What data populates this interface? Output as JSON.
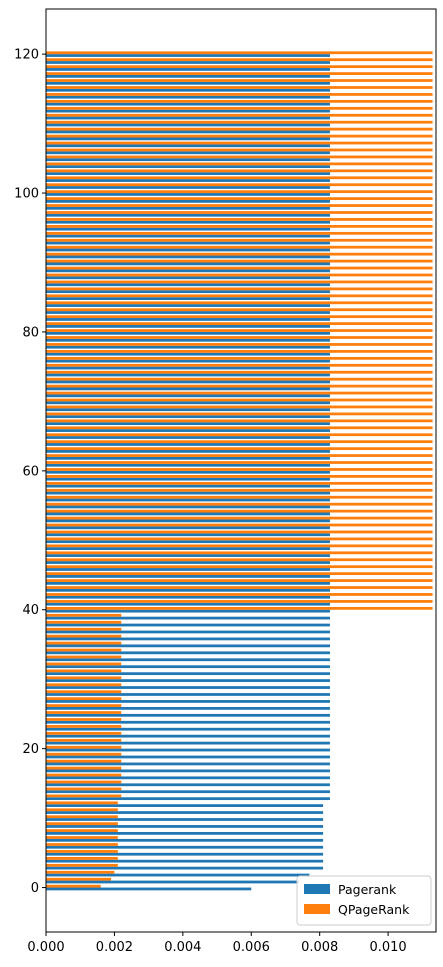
{
  "chart_data": {
    "type": "bar",
    "orientation": "horizontal",
    "grouped": true,
    "title": "",
    "xlabel": "",
    "ylabel": "",
    "xlim": [
      0,
      0.0114
    ],
    "ylim": [
      -6.4,
      126.5
    ],
    "x_ticks": [
      0.0,
      0.002,
      0.004,
      0.006,
      0.008,
      0.01
    ],
    "x_tick_labels": [
      "0.000",
      "0.002",
      "0.004",
      "0.006",
      "0.008",
      "0.010"
    ],
    "y_ticks": [
      0,
      20,
      40,
      60,
      80,
      100,
      120
    ],
    "y_tick_labels": [
      "0",
      "20",
      "40",
      "60",
      "80",
      "100",
      "120"
    ],
    "grid": false,
    "legend_position": "lower-right",
    "categories_range": [
      0,
      120
    ],
    "series": [
      {
        "name": "Pagerank",
        "color": "#1f77b4",
        "values": [
          0.006,
          0.0074,
          0.0077,
          0.0081,
          0.0081,
          0.0081,
          0.0081,
          0.0081,
          0.0081,
          0.0081,
          0.0081,
          0.0081,
          0.0081,
          0.0083,
          0.0083,
          0.0083,
          0.0083,
          0.0083,
          0.0083,
          0.0083,
          0.0083,
          0.0083,
          0.0083,
          0.0083,
          0.0083,
          0.0083,
          0.0083,
          0.0083,
          0.0083,
          0.0083,
          0.0083,
          0.0083,
          0.0083,
          0.0083,
          0.0083,
          0.0083,
          0.0083,
          0.0083,
          0.0083,
          0.0083,
          0.0083,
          0.0083,
          0.0083,
          0.0083,
          0.0083,
          0.0083,
          0.0083,
          0.0083,
          0.0083,
          0.0083,
          0.0083,
          0.0083,
          0.0083,
          0.0083,
          0.0083,
          0.0083,
          0.0083,
          0.0083,
          0.0083,
          0.0083,
          0.0083,
          0.0083,
          0.0083,
          0.0083,
          0.0083,
          0.0083,
          0.0083,
          0.0083,
          0.0083,
          0.0083,
          0.0083,
          0.0083,
          0.0083,
          0.0083,
          0.0083,
          0.0083,
          0.0083,
          0.0083,
          0.0083,
          0.0083,
          0.0083,
          0.0083,
          0.0083,
          0.0083,
          0.0083,
          0.0083,
          0.0083,
          0.0083,
          0.0083,
          0.0083,
          0.0083,
          0.0083,
          0.0083,
          0.0083,
          0.0083,
          0.0083,
          0.0083,
          0.0083,
          0.0083,
          0.0083,
          0.0083,
          0.0083,
          0.0083,
          0.0083,
          0.0083,
          0.0083,
          0.0083,
          0.0083,
          0.0083,
          0.0083,
          0.0083,
          0.0083,
          0.0083,
          0.0083,
          0.0083,
          0.0083,
          0.0083,
          0.0083,
          0.0083,
          0.0083,
          0.0083
        ]
      },
      {
        "name": "QPageRank",
        "color": "#ff7f0e",
        "values": [
          0.0016,
          0.0019,
          0.002,
          0.0021,
          0.0021,
          0.0021,
          0.0021,
          0.0021,
          0.0021,
          0.0021,
          0.0021,
          0.0021,
          0.0021,
          0.0022,
          0.0022,
          0.0022,
          0.0022,
          0.0022,
          0.0022,
          0.0022,
          0.0022,
          0.0022,
          0.0022,
          0.0022,
          0.0022,
          0.0022,
          0.0022,
          0.0022,
          0.0022,
          0.0022,
          0.0022,
          0.0022,
          0.0022,
          0.0022,
          0.0022,
          0.0022,
          0.0022,
          0.0022,
          0.0022,
          0.0022,
          0.0113,
          0.0113,
          0.0113,
          0.0113,
          0.0113,
          0.0113,
          0.0113,
          0.0113,
          0.0113,
          0.0113,
          0.0113,
          0.0113,
          0.0113,
          0.0113,
          0.0113,
          0.0113,
          0.0113,
          0.0113,
          0.0113,
          0.0113,
          0.0113,
          0.0113,
          0.0113,
          0.0113,
          0.0113,
          0.0113,
          0.0113,
          0.0113,
          0.0113,
          0.0113,
          0.0113,
          0.0113,
          0.0113,
          0.0113,
          0.0113,
          0.0113,
          0.0113,
          0.0113,
          0.0113,
          0.0113,
          0.0113,
          0.0113,
          0.0113,
          0.0113,
          0.0113,
          0.0113,
          0.0113,
          0.0113,
          0.0113,
          0.0113,
          0.0113,
          0.0113,
          0.0113,
          0.0113,
          0.0113,
          0.0113,
          0.0113,
          0.0113,
          0.0113,
          0.0113,
          0.0113,
          0.0113,
          0.0113,
          0.0113,
          0.0113,
          0.0113,
          0.0113,
          0.0113,
          0.0113,
          0.0113,
          0.0113,
          0.0113,
          0.0113,
          0.0113,
          0.0113,
          0.0113,
          0.0113,
          0.0113,
          0.0113,
          0.0113,
          0.0113
        ]
      }
    ]
  }
}
